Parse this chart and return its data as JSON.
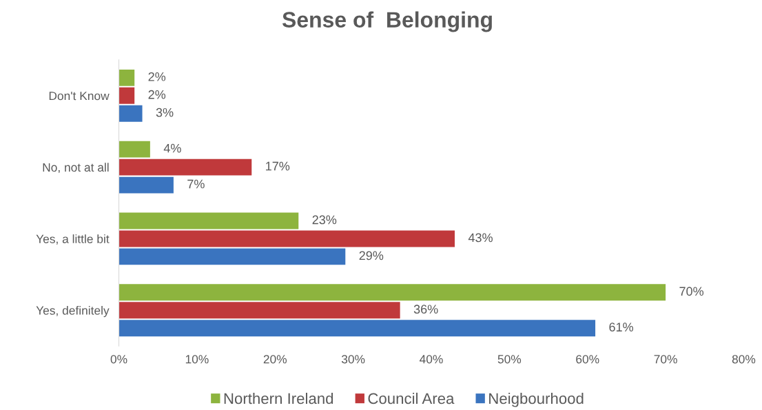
{
  "chart_data": {
    "type": "bar",
    "orientation": "horizontal",
    "title": "Sense of  Belonging",
    "categories": [
      "Don't Know",
      "No, not at all",
      "Yes, a little bit",
      "Yes, definitely"
    ],
    "series": [
      {
        "name": "Northern Ireland",
        "color": "#8db43e",
        "values": [
          2,
          4,
          23,
          70
        ],
        "value_labels": [
          "2%",
          "4%",
          "23%",
          "70%"
        ]
      },
      {
        "name": "Council Area",
        "color": "#c0393b",
        "values": [
          2,
          17,
          43,
          36
        ],
        "value_labels": [
          "2%",
          "17%",
          "43%",
          "36%"
        ]
      },
      {
        "name": "Neigbourhood",
        "color": "#3a74bf",
        "values": [
          3,
          7,
          29,
          61
        ],
        "value_labels": [
          "3%",
          "7%",
          "29%",
          "61%"
        ]
      }
    ],
    "xlim": [
      0,
      80
    ],
    "xticks": [
      {
        "value": 0,
        "label": "0%"
      },
      {
        "value": 10,
        "label": "10%"
      },
      {
        "value": 20,
        "label": "20%"
      },
      {
        "value": 30,
        "label": "30%"
      },
      {
        "value": 40,
        "label": "40%"
      },
      {
        "value": 50,
        "label": "50%"
      },
      {
        "value": 60,
        "label": "60%"
      },
      {
        "value": 70,
        "label": "70%"
      },
      {
        "value": 80,
        "label": "80%"
      }
    ],
    "legend": "bottom",
    "grid": false
  }
}
